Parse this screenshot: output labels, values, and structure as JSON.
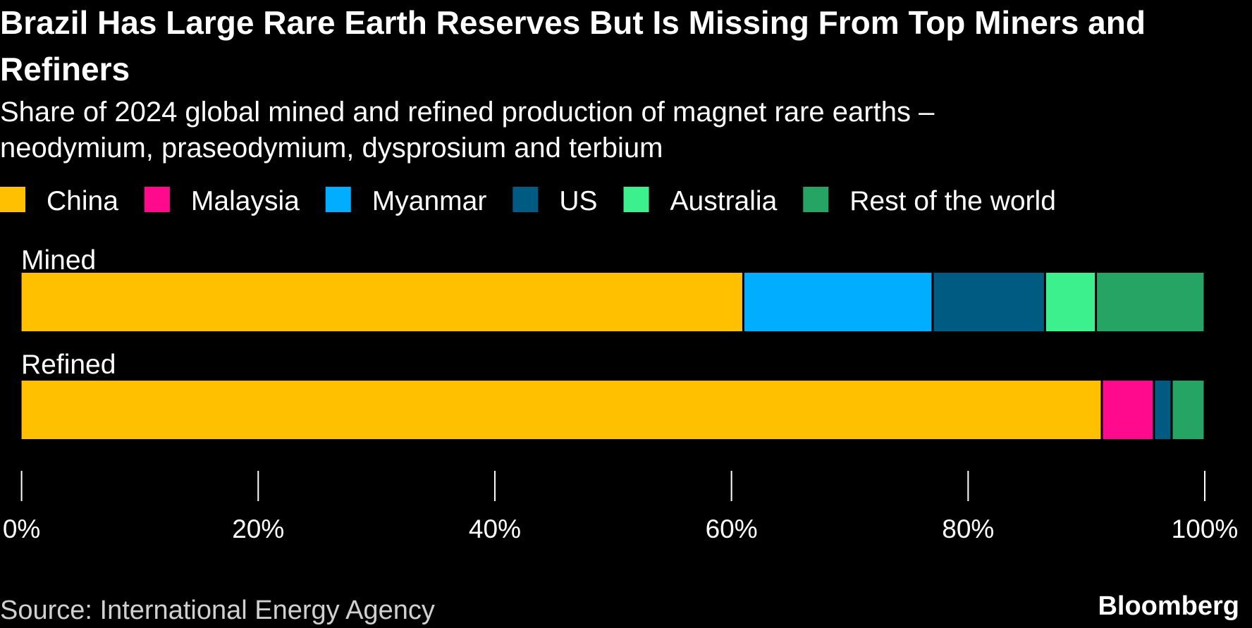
{
  "chart_data": {
    "type": "stacked-bar-horizontal",
    "title": "Brazil Has Large Rare Earth Reserves But Is Missing From Top Miners and Refiners",
    "subtitle": [
      "Share of 2024 global mined and refined production of magnet rare earths –",
      "neodymium, praseodymium, dysprosium and terbium"
    ],
    "categories": [
      "Mined",
      "Refined"
    ],
    "series": [
      {
        "name": "China",
        "color": "#ffc000",
        "values": [
          61,
          91.3
        ]
      },
      {
        "name": "Malaysia",
        "color": "#ff0a8c",
        "values": [
          null,
          4.4
        ]
      },
      {
        "name": "Myanmar",
        "color": "#00adff",
        "values": [
          16,
          null
        ]
      },
      {
        "name": "US",
        "color": "#005b82",
        "values": [
          9.5,
          1.5
        ]
      },
      {
        "name": "Australia",
        "color": "#3cf08e",
        "values": [
          4.3,
          null
        ]
      },
      {
        "name": "Rest of the world",
        "color": "#25a464",
        "values": [
          9.2,
          2.8
        ]
      }
    ],
    "xlim": [
      0,
      100
    ],
    "xticks": [
      {
        "value": 0,
        "label": "0%"
      },
      {
        "value": 20,
        "label": "20%"
      },
      {
        "value": 40,
        "label": "40%"
      },
      {
        "value": 60,
        "label": "60%"
      },
      {
        "value": 80,
        "label": "80%"
      },
      {
        "value": 100,
        "label": "100%"
      }
    ],
    "source": "Source: International Energy Agency",
    "brand": "Bloomberg"
  }
}
